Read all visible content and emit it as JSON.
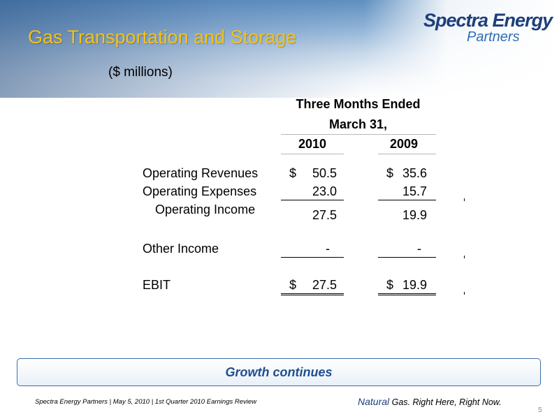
{
  "slide": {
    "title": "Gas Transportation and Storage",
    "logo": {
      "line1": "Spectra Energy",
      "line2": "Partners"
    },
    "units": "($ millions)",
    "header": {
      "line1": "Three Months Ended",
      "line2": "March 31,"
    },
    "years": [
      "2010",
      "2009"
    ],
    "rows": [
      {
        "label": "Operating Revenues",
        "dollar1": "$",
        "v2010": "50.5",
        "dollar2": "$",
        "v2009": "35.6"
      },
      {
        "label": "Operating Expenses",
        "v2010": "23.0",
        "v2009": "15.7"
      },
      {
        "label": "Operating Income",
        "v2010": "27.5",
        "v2009": "19.9"
      },
      {
        "label": "Other Income",
        "v2010": "-",
        "v2009": "-"
      },
      {
        "label": "EBIT",
        "dollar1": "$",
        "v2010": "27.5",
        "dollar2": "$",
        "v2009": "19.9"
      }
    ],
    "banner": "Growth continues",
    "footer_left": "Spectra Energy Partners | May 5, 2010 | 1st Quarter 2010 Earnings Review",
    "footer_right": {
      "natural": "Natural",
      "rest": " Gas.  Right Here, Right Now."
    },
    "page_number": "5"
  }
}
